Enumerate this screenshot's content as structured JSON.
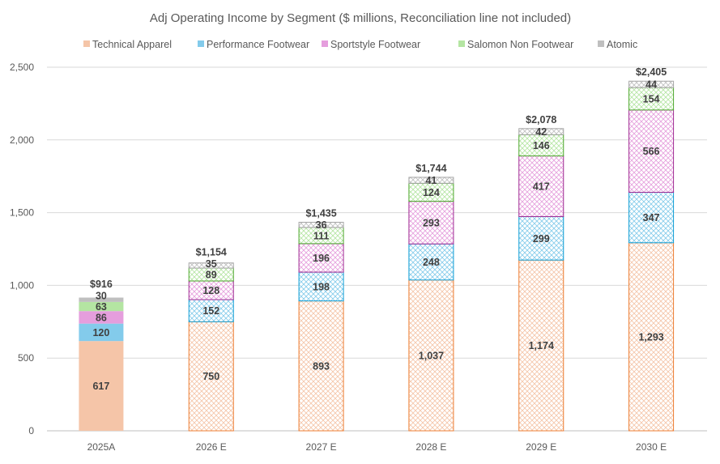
{
  "chart_data": {
    "type": "bar",
    "stacked": true,
    "title": "Adj Operating Income by Segment ($ millions, Reconciliation line not included)",
    "categories": [
      "2025A",
      "2026 E",
      "2027 E",
      "2028 E",
      "2029 E",
      "2030 E"
    ],
    "totals": [
      "$916",
      "$1,154",
      "$1,435",
      "$1,744",
      "$2,078",
      "$2,405"
    ],
    "series": [
      {
        "name": "Technical Apparel",
        "values": [
          617,
          750,
          893,
          1037,
          1174,
          1293
        ],
        "fill": "#F5C5A8",
        "stroke": "#ED7D31"
      },
      {
        "name": "Performance Footwear",
        "values": [
          120,
          152,
          198,
          248,
          299,
          347
        ],
        "fill": "#83CBEB",
        "stroke": "#0F9ED5"
      },
      {
        "name": "Sportstyle Footwear",
        "values": [
          86,
          128,
          196,
          293,
          417,
          566
        ],
        "fill": "#E59EDD",
        "stroke": "#A02B93"
      },
      {
        "name": "Salomon Non Footwear",
        "values": [
          63,
          89,
          111,
          124,
          146,
          154
        ],
        "fill": "#B4E5A2",
        "stroke": "#4EA72E"
      },
      {
        "name": "Atomic",
        "values": [
          30,
          35,
          36,
          41,
          42,
          44
        ],
        "fill": "#BFBFBF",
        "stroke": "#A6A6A6"
      }
    ],
    "hatched_from_index": 1,
    "ylim": [
      0,
      2500
    ],
    "yticks": [
      0,
      500,
      1000,
      1500,
      2000,
      2500
    ],
    "ytick_labels": [
      "0",
      "500",
      "1,000",
      "1,500",
      "2,000",
      "2,500"
    ],
    "grid": true,
    "legend": "top"
  }
}
